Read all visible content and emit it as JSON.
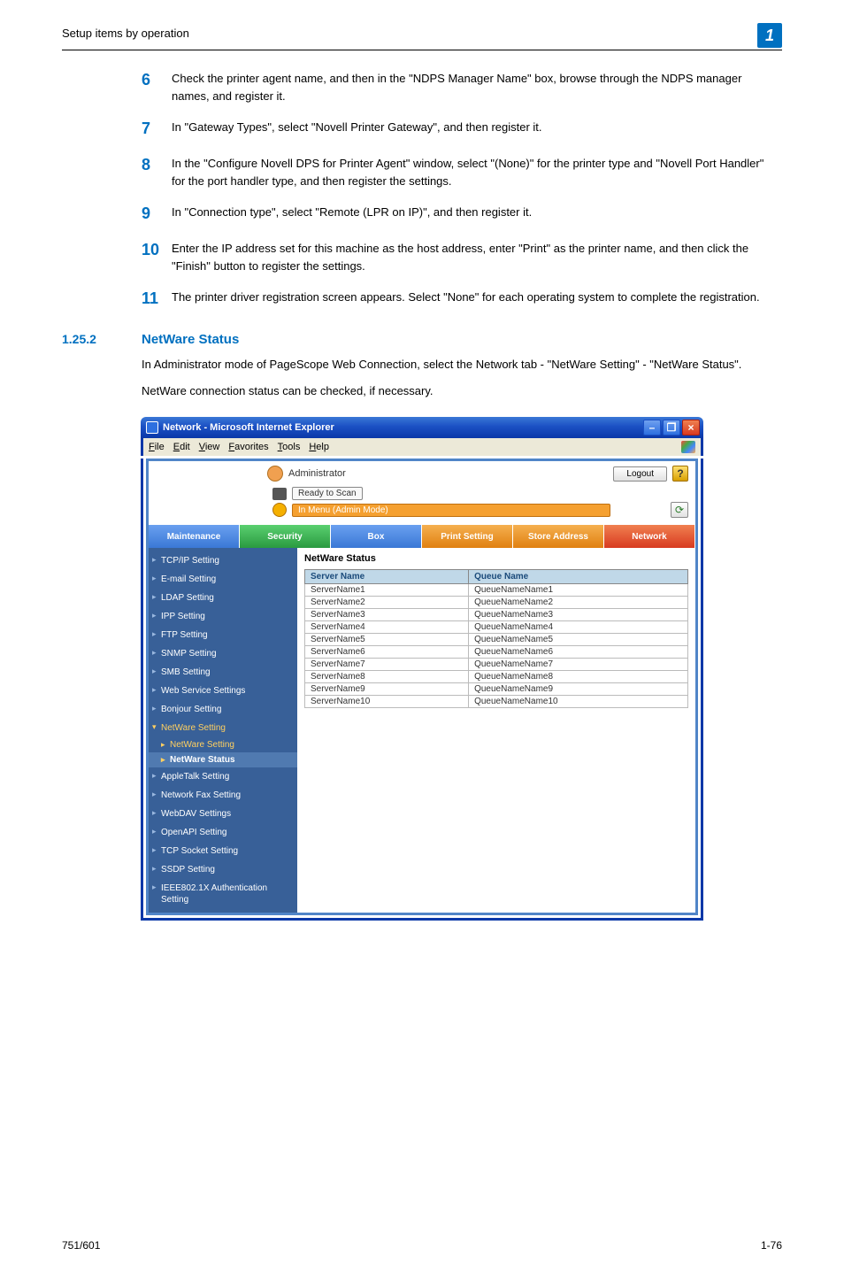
{
  "header": {
    "section_title": "Setup items by operation",
    "badge": "1"
  },
  "steps": [
    {
      "num": "6",
      "text": "Check the printer agent name, and then in the \"NDPS Manager Name\" box, browse through the NDPS manager names, and register it."
    },
    {
      "num": "7",
      "text": "In \"Gateway Types\", select \"Novell Printer Gateway\", and then register it."
    },
    {
      "num": "8",
      "text": "In the \"Configure Novell DPS for Printer Agent\" window, select \"(None)\" for the printer type and \"Novell Port Handler\" for the port handler type, and then register the settings."
    },
    {
      "num": "9",
      "text": "In \"Connection type\", select \"Remote (LPR on IP)\", and then register it."
    },
    {
      "num": "10",
      "text": "Enter the IP address set for this machine as the host address, enter \"Print\" as the printer name, and then click the \"Finish\" button to register the settings."
    },
    {
      "num": "11",
      "text": "The printer driver registration screen appears. Select \"None\" for each operating system to complete the registration."
    }
  ],
  "subsection": {
    "num": "1.25.2",
    "title": "NetWare Status",
    "para1": "In Administrator mode of PageScope Web Connection, select the Network tab - \"NetWare Setting\" - \"NetWare Status\".",
    "para2": "NetWare connection status can be checked, if necessary."
  },
  "window": {
    "title": "Network - Microsoft Internet Explorer",
    "menus": [
      "File",
      "Edit",
      "View",
      "Favorites",
      "Tools",
      "Help"
    ],
    "admin_label": "Administrator",
    "logout": "Logout",
    "help": "?",
    "status_ready": "Ready to Scan",
    "status_menu": "In Menu (Admin Mode)",
    "tabs": [
      {
        "label": "Maintenance",
        "cls": "inactive"
      },
      {
        "label": "Security",
        "cls": "sec"
      },
      {
        "label": "Box",
        "cls": "inactive"
      },
      {
        "label": "Print Setting",
        "cls": "orange"
      },
      {
        "label": "Store Address",
        "cls": "orange"
      },
      {
        "label": "Network",
        "cls": "active"
      }
    ],
    "sidebar": [
      {
        "label": "TCP/IP Setting",
        "type": "item"
      },
      {
        "label": "E-mail Setting",
        "type": "item"
      },
      {
        "label": "LDAP Setting",
        "type": "item"
      },
      {
        "label": "IPP Setting",
        "type": "item"
      },
      {
        "label": "FTP Setting",
        "type": "item"
      },
      {
        "label": "SNMP Setting",
        "type": "item"
      },
      {
        "label": "SMB Setting",
        "type": "item"
      },
      {
        "label": "Web Service Settings",
        "type": "item"
      },
      {
        "label": "Bonjour Setting",
        "type": "item"
      },
      {
        "label": "NetWare Setting",
        "type": "expanded"
      },
      {
        "label": "NetWare Setting",
        "type": "sub"
      },
      {
        "label": "NetWare Status",
        "type": "sub-active"
      },
      {
        "label": "AppleTalk Setting",
        "type": "item"
      },
      {
        "label": "Network Fax Setting",
        "type": "item"
      },
      {
        "label": "WebDAV Settings",
        "type": "item"
      },
      {
        "label": "OpenAPI Setting",
        "type": "item"
      },
      {
        "label": "TCP Socket Setting",
        "type": "item"
      },
      {
        "label": "SSDP Setting",
        "type": "item"
      },
      {
        "label": "IEEE802.1X Authentication Setting",
        "type": "item"
      }
    ],
    "panel_title": "NetWare Status",
    "columns": [
      "Server Name",
      "Queue Name"
    ],
    "rows": [
      [
        "ServerName1",
        "QueueNameName1"
      ],
      [
        "ServerName2",
        "QueueNameName2"
      ],
      [
        "ServerName3",
        "QueueNameName3"
      ],
      [
        "ServerName4",
        "QueueNameName4"
      ],
      [
        "ServerName5",
        "QueueNameName5"
      ],
      [
        "ServerName6",
        "QueueNameName6"
      ],
      [
        "ServerName7",
        "QueueNameName7"
      ],
      [
        "ServerName8",
        "QueueNameName8"
      ],
      [
        "ServerName9",
        "QueueNameName9"
      ],
      [
        "ServerName10",
        "QueueNameName10"
      ]
    ]
  },
  "footer": {
    "left": "751/601",
    "right": "1-76"
  }
}
